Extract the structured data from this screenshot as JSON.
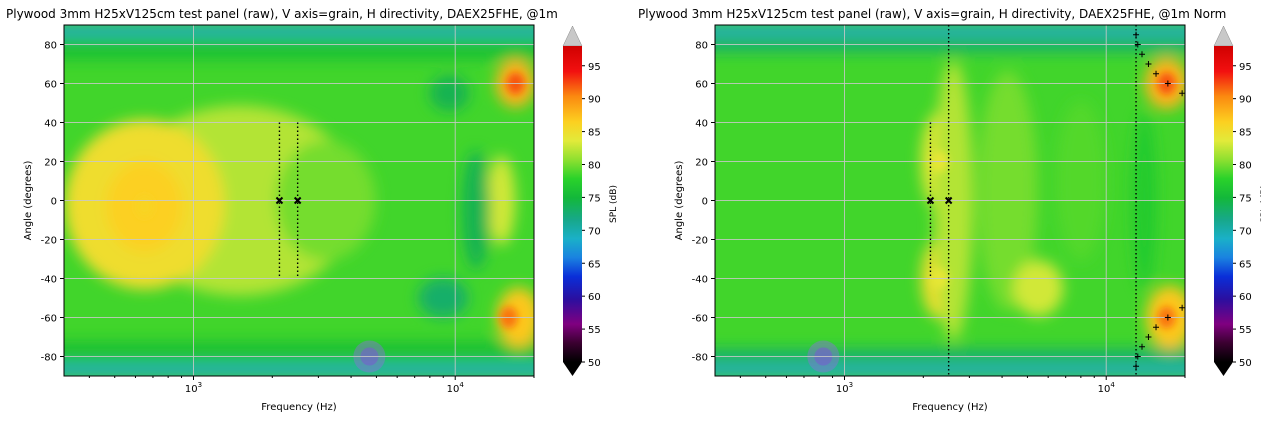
{
  "chart_data": [
    {
      "type": "heatmap",
      "title": "Plywood 3mm H25xV125cm test panel (raw), V axis=grain, H directivity, DAEX25FHE, @1m",
      "xlabel": "Frequency (Hz)",
      "ylabel": "Angle (degrees)",
      "x_scale": "log",
      "xlim": [
        320,
        20000
      ],
      "ylim": [
        -90,
        90
      ],
      "x_tick_labels": [
        {
          "value": 1000,
          "base": "10",
          "exp": "3"
        },
        {
          "value": 10000,
          "base": "10",
          "exp": "4"
        }
      ],
      "y_ticks": [
        -80,
        -60,
        -40,
        -20,
        0,
        20,
        40,
        60,
        80
      ],
      "grid": true,
      "colorbar": {
        "label": "SPL (dB)",
        "min": 50,
        "max": 98,
        "ticks": [
          50,
          55,
          60,
          65,
          70,
          75,
          80,
          85,
          90,
          95
        ]
      },
      "markers": [
        {
          "shape": "x",
          "frequency": 2130,
          "angle": 0
        },
        {
          "shape": "x",
          "frequency": 2500,
          "angle": 0
        }
      ],
      "vertical_lines": [
        {
          "frequency": 2130,
          "angle_from": -40,
          "angle_to": 40
        },
        {
          "frequency": 2500,
          "angle_from": -40,
          "angle_to": 40
        }
      ],
      "bright_spots": [
        {
          "frequency": 650,
          "angle": -3,
          "spl": 86
        },
        {
          "frequency": 17000,
          "angle": 60,
          "spl": 92
        },
        {
          "frequency": 16000,
          "angle": -60,
          "spl": 91
        }
      ]
    },
    {
      "type": "heatmap",
      "title": "Plywood 3mm H25xV125cm test panel (raw), V axis=grain, H directivity, DAEX25FHE, @1m  Norm",
      "xlabel": "Frequency (Hz)",
      "ylabel": "Angle (degrees)",
      "x_scale": "log",
      "xlim": [
        320,
        20000
      ],
      "ylim": [
        -90,
        90
      ],
      "x_tick_labels": [
        {
          "value": 1000,
          "base": "10",
          "exp": "3"
        },
        {
          "value": 10000,
          "base": "10",
          "exp": "4"
        }
      ],
      "y_ticks": [
        -80,
        -60,
        -40,
        -20,
        0,
        20,
        40,
        60,
        80
      ],
      "grid": true,
      "colorbar": {
        "label": "SPL (dB)",
        "min": 50,
        "max": 98,
        "ticks": [
          50,
          55,
          60,
          65,
          70,
          75,
          80,
          85,
          90,
          95
        ]
      },
      "markers": [
        {
          "shape": "x",
          "frequency": 2130,
          "angle": 0
        },
        {
          "shape": "x",
          "frequency": 2500,
          "angle": 0
        },
        {
          "shape": "+",
          "frequency": 13000,
          "angle": 85
        },
        {
          "shape": "+",
          "frequency": 13200,
          "angle": 80
        },
        {
          "shape": "+",
          "frequency": 13700,
          "angle": 75
        },
        {
          "shape": "+",
          "frequency": 14500,
          "angle": 70
        },
        {
          "shape": "+",
          "frequency": 15500,
          "angle": 65
        },
        {
          "shape": "+",
          "frequency": 17200,
          "angle": 60
        },
        {
          "shape": "+",
          "frequency": 19500,
          "angle": 55
        },
        {
          "shape": "+",
          "frequency": 13000,
          "angle": -85
        },
        {
          "shape": "+",
          "frequency": 13200,
          "angle": -80
        },
        {
          "shape": "+",
          "frequency": 13700,
          "angle": -75
        },
        {
          "shape": "+",
          "frequency": 14500,
          "angle": -70
        },
        {
          "shape": "+",
          "frequency": 15500,
          "angle": -65
        },
        {
          "shape": "+",
          "frequency": 17200,
          "angle": -60
        },
        {
          "shape": "+",
          "frequency": 19500,
          "angle": -55
        }
      ],
      "vertical_lines": [
        {
          "frequency": 2130,
          "angle_from": -40,
          "angle_to": 40
        },
        {
          "frequency": 2500,
          "angle_from": -90,
          "angle_to": 90
        },
        {
          "frequency": 13000,
          "angle_from": -90,
          "angle_to": 90
        }
      ],
      "bright_spots": [
        {
          "frequency": 2300,
          "angle": 20,
          "spl": 84
        },
        {
          "frequency": 2300,
          "angle": -40,
          "spl": 84
        },
        {
          "frequency": 17000,
          "angle": 60,
          "spl": 92
        },
        {
          "frequency": 17000,
          "angle": -60,
          "spl": 91
        }
      ]
    }
  ]
}
